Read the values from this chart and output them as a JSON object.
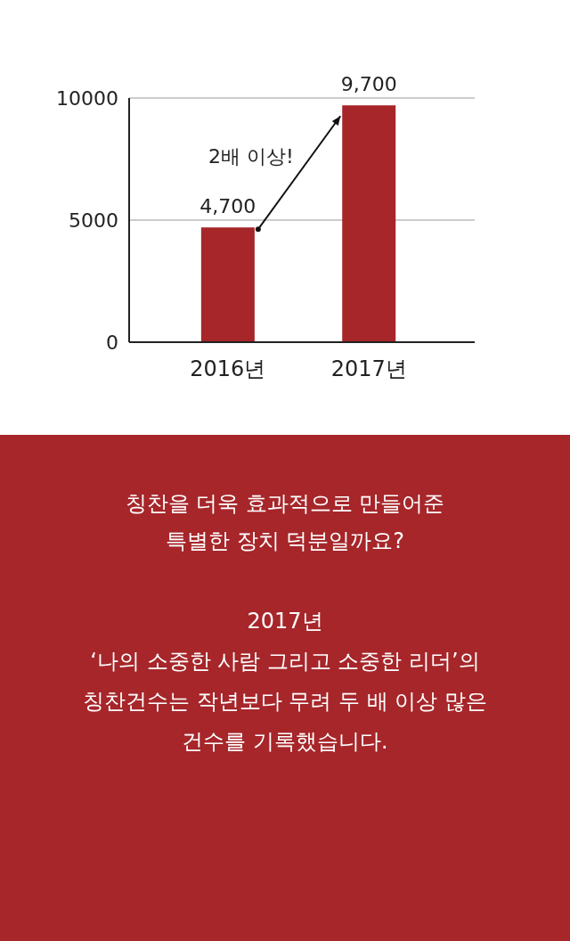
{
  "chart_data": {
    "type": "bar",
    "categories": [
      "2016년",
      "2017년"
    ],
    "values": [
      4700,
      9700
    ],
    "value_labels": [
      "4,700",
      "9,700"
    ],
    "color": "#a6262a",
    "ylim": [
      0,
      10000
    ],
    "yticks": [
      0,
      5000,
      10000
    ],
    "grid": "y",
    "annotations": [
      "2배 이상!",
      "칭찬을 더욱 효과적으로 만들어준",
      "특별한 장치 덕분일까요?",
      "2017년",
      "‘나의 소중한 사람 그리고 소중한 리더’의",
      "칭찬건수는 작년보다 무려 두 배 이상 많은",
      "건수를 기록했습니다."
    ]
  }
}
